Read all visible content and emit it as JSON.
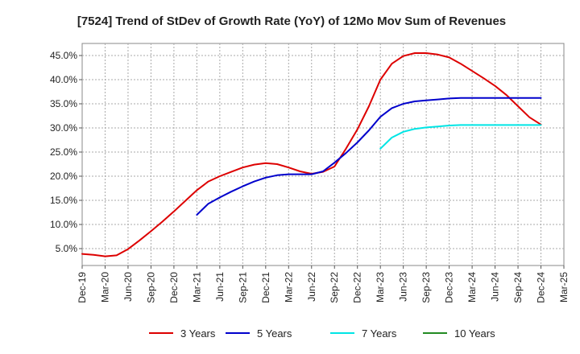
{
  "chart_data": {
    "type": "line",
    "title": "[7524]  Trend of StDev of Growth Rate (YoY) of 12Mo Mov Sum of Revenues",
    "xlabel": "",
    "ylabel": "",
    "x_tick_labels": [
      "Dec-19",
      "Mar-20",
      "Jun-20",
      "Sep-20",
      "Dec-20",
      "Mar-21",
      "Jun-21",
      "Sep-21",
      "Dec-21",
      "Mar-22",
      "Jun-22",
      "Sep-22",
      "Dec-22",
      "Mar-23",
      "Jun-23",
      "Sep-23",
      "Dec-23",
      "Mar-24",
      "Jun-24",
      "Sep-24",
      "Dec-24",
      "Mar-25"
    ],
    "y_ticks": [
      5.0,
      10.0,
      15.0,
      20.0,
      25.0,
      30.0,
      35.0,
      40.0,
      45.0
    ],
    "y_tick_labels": [
      "5.0%",
      "10.0%",
      "15.0%",
      "20.0%",
      "25.0%",
      "30.0%",
      "35.0%",
      "40.0%",
      "45.0%"
    ],
    "ylim": [
      1.5,
      47.5
    ],
    "xlim": [
      0,
      21
    ],
    "grid": true,
    "legend_position": "bottom",
    "series": [
      {
        "name": "3 Years",
        "color": "#dd0000",
        "x": [
          0,
          0.5,
          1,
          1.5,
          2,
          2.5,
          3,
          3.5,
          4,
          4.5,
          5,
          5.5,
          6,
          6.5,
          7,
          7.5,
          8,
          8.5,
          9,
          9.5,
          10,
          10.5,
          11,
          11.5,
          12,
          12.5,
          13,
          13.5,
          14,
          14.5,
          15,
          15.5,
          16,
          16.5,
          17,
          17.5,
          18,
          18.5,
          19,
          19.5,
          20
        ],
        "values": [
          3.9,
          3.7,
          3.4,
          3.6,
          4.9,
          6.7,
          8.6,
          10.6,
          12.7,
          14.9,
          17.1,
          18.9,
          20.0,
          20.9,
          21.8,
          22.4,
          22.7,
          22.5,
          21.8,
          21.0,
          20.5,
          20.9,
          22.0,
          25.7,
          29.7,
          34.5,
          40.0,
          43.3,
          44.9,
          45.5,
          45.5,
          45.2,
          44.6,
          43.3,
          41.8,
          40.3,
          38.7,
          36.8,
          34.5,
          32.2,
          30.7
        ]
      },
      {
        "name": "5 Years",
        "color": "#0000cc",
        "x": [
          5,
          5.5,
          6,
          6.5,
          7,
          7.5,
          8,
          8.5,
          9,
          9.5,
          10,
          10.5,
          11,
          11.5,
          12,
          12.5,
          13,
          13.5,
          14,
          14.5,
          15,
          15.5,
          16,
          16.5,
          17,
          17.5,
          18,
          18.5,
          19,
          19.5,
          20
        ],
        "values": [
          12.0,
          14.3,
          15.6,
          16.8,
          17.9,
          18.9,
          19.7,
          20.2,
          20.4,
          20.4,
          20.4,
          21.0,
          22.8,
          24.8,
          27.0,
          29.5,
          32.3,
          34.1,
          35.0,
          35.5,
          35.7,
          35.9,
          36.1,
          36.2,
          36.2,
          36.2,
          36.2,
          36.2,
          36.2,
          36.2,
          36.2
        ]
      },
      {
        "name": "7 Years",
        "color": "#00e5e5",
        "x": [
          13,
          13.5,
          14,
          14.5,
          15,
          15.5,
          16,
          16.5,
          17,
          17.5,
          18,
          18.5,
          19,
          19.5,
          20
        ],
        "values": [
          25.7,
          28.0,
          29.2,
          29.8,
          30.1,
          30.3,
          30.5,
          30.6,
          30.6,
          30.6,
          30.6,
          30.6,
          30.6,
          30.6,
          30.6
        ]
      },
      {
        "name": "10 Years",
        "color": "#228b22",
        "x": [],
        "values": []
      }
    ]
  }
}
